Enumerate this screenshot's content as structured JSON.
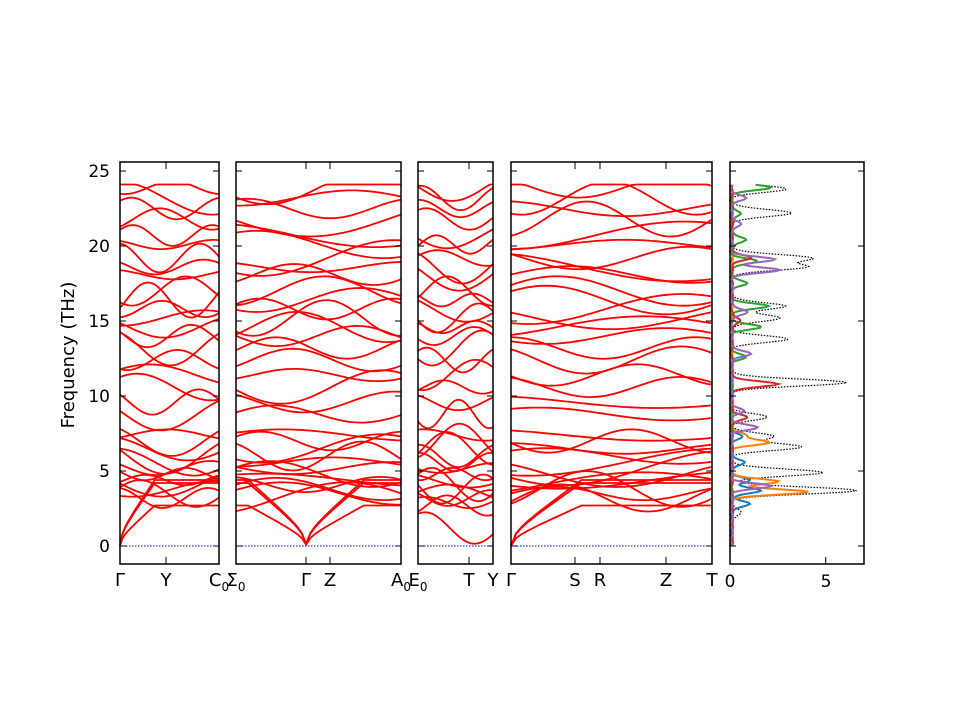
{
  "chart_data": {
    "type": "line",
    "ylabel": "Frequency (THz)",
    "ylim": [
      -1.2,
      25.5
    ],
    "y_ticks": [
      "0",
      "5",
      "10",
      "15",
      "20",
      "25"
    ],
    "zero_line_color": "#0000cc",
    "band_color": "#ff0000",
    "segments": [
      {
        "name": "segment-1",
        "labels": [
          "Γ",
          "Y",
          "C0"
        ]
      },
      {
        "name": "segment-2",
        "labels": [
          "Σ0",
          "Γ",
          "Z",
          "A0"
        ]
      },
      {
        "name": "segment-3",
        "labels": [
          "E0",
          "T",
          "Y"
        ]
      },
      {
        "name": "segment-4",
        "labels": [
          "Γ",
          "S",
          "R",
          "Z",
          "T"
        ]
      }
    ],
    "dos": {
      "xlim": [
        0,
        7
      ],
      "x_ticks": [
        "0",
        "5"
      ],
      "series": [
        {
          "color": "#000000",
          "style": "dotted",
          "peaks": [
            [
              2.2,
              0.5
            ],
            [
              3.7,
              6.5
            ],
            [
              4.9,
              4.8
            ],
            [
              6.6,
              3.6
            ],
            [
              7.3,
              2.2
            ],
            [
              8.6,
              1.8
            ],
            [
              10.9,
              6.0
            ],
            [
              13.8,
              2.9
            ],
            [
              15.2,
              2.6
            ],
            [
              16.0,
              2.8
            ],
            [
              18.6,
              3.8
            ],
            [
              19.2,
              4.2
            ],
            [
              22.2,
              3.2
            ],
            [
              23.8,
              2.8
            ]
          ]
        },
        {
          "color": "#1f77b4",
          "style": "solid",
          "peaks": [
            [
              2.8,
              1.0
            ],
            [
              3.7,
              1.6
            ],
            [
              4.4,
              0.9
            ],
            [
              5.6,
              0.7
            ],
            [
              7.3,
              0.5
            ]
          ]
        },
        {
          "color": "#ff7f0e",
          "style": "solid",
          "peaks": [
            [
              3.6,
              4.0
            ],
            [
              4.3,
              2.5
            ],
            [
              6.9,
              1.9
            ],
            [
              7.4,
              0.8
            ]
          ]
        },
        {
          "color": "#2ca02c",
          "style": "solid",
          "peaks": [
            [
              12.6,
              0.7
            ],
            [
              14.6,
              1.5
            ],
            [
              16.0,
              1.9
            ],
            [
              17.5,
              0.8
            ],
            [
              19.0,
              1.3
            ],
            [
              20.4,
              0.8
            ],
            [
              22.2,
              0.5
            ],
            [
              23.9,
              2.0
            ]
          ]
        },
        {
          "color": "#d62728",
          "style": "solid",
          "peaks": [
            [
              8.6,
              0.8
            ],
            [
              10.8,
              2.5
            ],
            [
              15.0,
              0.5
            ],
            [
              19.2,
              1.0
            ]
          ]
        },
        {
          "color": "#9467bd",
          "style": "solid",
          "peaks": [
            [
              4.0,
              2.0
            ],
            [
              7.9,
              1.3
            ],
            [
              9.0,
              0.6
            ],
            [
              12.8,
              1.0
            ],
            [
              15.6,
              0.9
            ],
            [
              18.4,
              2.5
            ],
            [
              19.1,
              2.2
            ],
            [
              21.5,
              0.5
            ],
            [
              23.2,
              0.7
            ]
          ]
        }
      ]
    }
  }
}
